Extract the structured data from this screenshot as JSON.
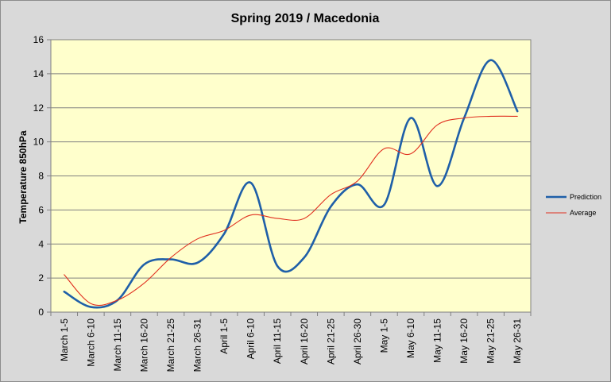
{
  "chart_data": {
    "type": "line",
    "title": "Spring 2019 / Macedonia",
    "ylabel": "Temperature 850hPa",
    "xlabel": "",
    "ylim": [
      0,
      16
    ],
    "yticks": [
      0,
      2,
      4,
      6,
      8,
      10,
      12,
      14,
      16
    ],
    "grid": true,
    "legend_position": "right",
    "background_color": "#ffffcc",
    "categories": [
      "March 1-5",
      "March 6-10",
      "March 11-15",
      "March 16-20",
      "March 21-25",
      "March 26-31",
      "April 1-5",
      "April 6-10",
      "April 11-15",
      "April 16-20",
      "April 21-25",
      "April 26-30",
      "May 1-5",
      "May 6-10",
      "May 11-15",
      "May 16-20",
      "May 21-25",
      "May 26-31"
    ],
    "series": [
      {
        "name": "Prediction",
        "color": "#1f5fa8",
        "values": [
          1.2,
          0.3,
          0.7,
          2.8,
          3.1,
          2.9,
          4.6,
          7.6,
          2.7,
          3.2,
          6.2,
          7.5,
          6.3,
          11.4,
          7.4,
          11.4,
          14.8,
          11.8
        ]
      },
      {
        "name": "Average",
        "color": "#e03020",
        "values": [
          2.2,
          0.5,
          0.7,
          1.7,
          3.2,
          4.3,
          4.8,
          5.7,
          5.5,
          5.5,
          6.9,
          7.7,
          9.6,
          9.3,
          11.0,
          11.4,
          11.5,
          11.5
        ]
      }
    ]
  }
}
